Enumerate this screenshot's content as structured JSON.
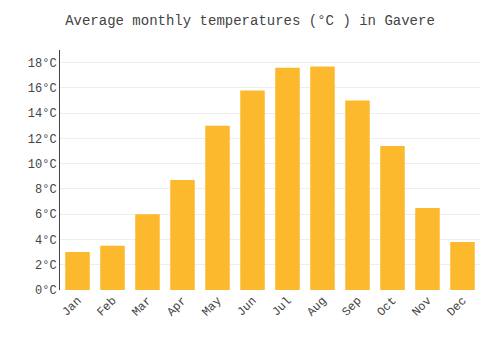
{
  "chart_data": {
    "type": "bar",
    "title": "Average monthly temperatures (°C ) in Gavere",
    "categories": [
      "Jan",
      "Feb",
      "Mar",
      "Apr",
      "May",
      "Jun",
      "Jul",
      "Aug",
      "Sep",
      "Oct",
      "Nov",
      "Dec"
    ],
    "values": [
      3.0,
      3.5,
      6.0,
      8.7,
      13.0,
      15.8,
      17.6,
      17.7,
      15.0,
      11.4,
      6.5,
      3.8
    ],
    "color": "#FDB92E",
    "ylim": [
      0,
      19
    ],
    "yticks": [
      {
        "value": 0,
        "label": "0°C"
      },
      {
        "value": 2,
        "label": "2°C"
      },
      {
        "value": 4,
        "label": "4°C"
      },
      {
        "value": 6,
        "label": "6°C"
      },
      {
        "value": 8,
        "label": "8°C"
      },
      {
        "value": 10,
        "label": "10°C"
      },
      {
        "value": 12,
        "label": "12°C"
      },
      {
        "value": 14,
        "label": "14°C"
      },
      {
        "value": 16,
        "label": "16°C"
      },
      {
        "value": 18,
        "label": "18°C"
      }
    ],
    "grid": true
  }
}
